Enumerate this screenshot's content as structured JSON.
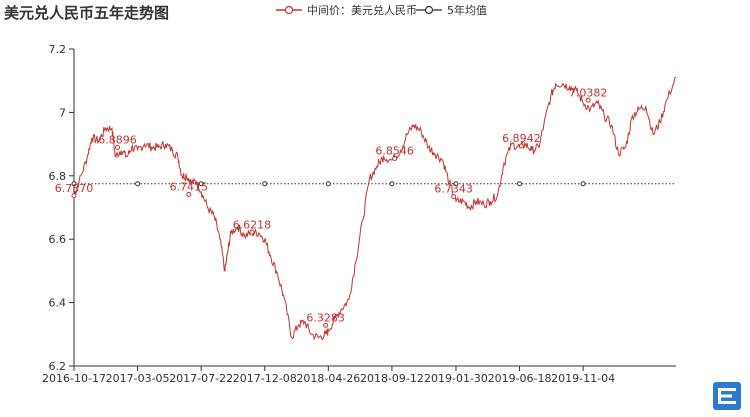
{
  "chart_data": {
    "type": "line",
    "title": "美元兑人民币五年走势图",
    "legend": [
      "中间价：美元兑人民币",
      "5年均值"
    ],
    "legend_placement": "top-center",
    "x_tick_labels": [
      "2016-10-17",
      "2017-03-05",
      "2017-07-22",
      "2017-12-08",
      "2018-04-26",
      "2018-09-12",
      "2019-01-30",
      "2019-06-18",
      "2019-11-04"
    ],
    "y_ticks": [
      6.2,
      6.4,
      6.6,
      6.8,
      7,
      7.2
    ],
    "ylim": [
      6.2,
      7.2
    ],
    "xlim": [
      "2016-10-17",
      "2020-05-25"
    ],
    "grid": false,
    "series": [
      {
        "name": "中间价：美元兑人民币",
        "color": "#c23531",
        "points": [
          [
            "2016-10-17",
            6.737
          ],
          [
            "2016-10-28",
            6.78
          ],
          [
            "2016-11-15",
            6.86
          ],
          [
            "2016-11-25",
            6.92
          ],
          [
            "2016-12-10",
            6.91
          ],
          [
            "2016-12-25",
            6.95
          ],
          [
            "2017-01-08",
            6.95
          ],
          [
            "2017-01-15",
            6.86
          ],
          [
            "2017-01-28",
            6.88
          ],
          [
            "2017-02-10",
            6.86
          ],
          [
            "2017-02-20",
            6.89
          ],
          [
            "2017-03-05",
            6.88
          ],
          [
            "2017-03-20",
            6.9
          ],
          [
            "2017-04-05",
            6.89
          ],
          [
            "2017-04-20",
            6.89
          ],
          [
            "2017-05-05",
            6.9
          ],
          [
            "2017-05-20",
            6.88
          ],
          [
            "2017-06-01",
            6.86
          ],
          [
            "2017-06-10",
            6.8
          ],
          [
            "2017-06-20",
            6.8
          ],
          [
            "2017-06-30",
            6.78
          ],
          [
            "2017-07-12",
            6.78
          ],
          [
            "2017-07-22",
            6.75
          ],
          [
            "2017-08-05",
            6.7
          ],
          [
            "2017-08-20",
            6.67
          ],
          [
            "2017-09-01",
            6.6
          ],
          [
            "2017-09-12",
            6.5
          ],
          [
            "2017-09-18",
            6.56
          ],
          [
            "2017-09-25",
            6.62
          ],
          [
            "2017-10-10",
            6.64
          ],
          [
            "2017-10-25",
            6.61
          ],
          [
            "2017-11-10",
            6.62
          ],
          [
            "2017-11-25",
            6.62
          ],
          [
            "2017-12-08",
            6.6
          ],
          [
            "2017-12-20",
            6.55
          ],
          [
            "2018-01-05",
            6.49
          ],
          [
            "2018-01-20",
            6.41
          ],
          [
            "2018-02-05",
            6.29
          ],
          [
            "2018-02-20",
            6.33
          ],
          [
            "2018-03-05",
            6.34
          ],
          [
            "2018-03-20",
            6.3
          ],
          [
            "2018-04-05",
            6.29
          ],
          [
            "2018-04-20",
            6.3
          ],
          [
            "2018-04-26",
            6.31
          ],
          [
            "2018-05-10",
            6.35
          ],
          [
            "2018-05-25",
            6.38
          ],
          [
            "2018-06-10",
            6.41
          ],
          [
            "2018-06-25",
            6.53
          ],
          [
            "2018-07-10",
            6.66
          ],
          [
            "2018-07-25",
            6.79
          ],
          [
            "2018-08-10",
            6.83
          ],
          [
            "2018-08-25",
            6.86
          ],
          [
            "2018-09-12",
            6.85
          ],
          [
            "2018-10-01",
            6.88
          ],
          [
            "2018-10-15",
            6.93
          ],
          [
            "2018-10-30",
            6.96
          ],
          [
            "2018-11-15",
            6.94
          ],
          [
            "2018-12-01",
            6.89
          ],
          [
            "2018-12-15",
            6.87
          ],
          [
            "2019-01-01",
            6.85
          ],
          [
            "2019-01-15",
            6.78
          ],
          [
            "2019-01-30",
            6.72
          ],
          [
            "2019-02-15",
            6.72
          ],
          [
            "2019-03-01",
            6.7
          ],
          [
            "2019-03-15",
            6.72
          ],
          [
            "2019-04-01",
            6.71
          ],
          [
            "2019-04-15",
            6.72
          ],
          [
            "2019-05-01",
            6.74
          ],
          [
            "2019-05-15",
            6.84
          ],
          [
            "2019-06-01",
            6.9
          ],
          [
            "2019-06-18",
            6.89
          ],
          [
            "2019-07-01",
            6.9
          ],
          [
            "2019-07-15",
            6.88
          ],
          [
            "2019-07-30",
            6.89
          ],
          [
            "2019-08-10",
            6.96
          ],
          [
            "2019-08-25",
            7.05
          ],
          [
            "2019-09-05",
            7.09
          ],
          [
            "2019-09-20",
            7.09
          ],
          [
            "2019-10-05",
            7.08
          ],
          [
            "2019-10-20",
            7.07
          ],
          [
            "2019-11-04",
            7.03
          ],
          [
            "2019-11-20",
            7.01
          ],
          [
            "2019-12-05",
            7.03
          ],
          [
            "2019-12-20",
            6.99
          ],
          [
            "2020-01-05",
            6.96
          ],
          [
            "2020-01-20",
            6.87
          ],
          [
            "2020-02-05",
            6.89
          ],
          [
            "2020-02-20",
            6.99
          ],
          [
            "2020-03-05",
            7.01
          ],
          [
            "2020-03-20",
            7.02
          ],
          [
            "2020-04-05",
            6.93
          ],
          [
            "2020-04-20",
            6.97
          ],
          [
            "2020-05-05",
            7.04
          ],
          [
            "2020-05-25",
            7.11
          ]
        ]
      },
      {
        "name": "5年均值",
        "color": "#333333",
        "value": 6.775
      }
    ],
    "data_labels": [
      {
        "text": "6.7370",
        "x": "2016-10-17",
        "y": 6.737
      },
      {
        "text": "6.8896",
        "x": "2017-01-20",
        "y": 6.8896
      },
      {
        "text": "6.7415",
        "x": "2017-06-25",
        "y": 6.7415
      },
      {
        "text": "6.6218",
        "x": "2017-11-10",
        "y": 6.6218
      },
      {
        "text": "6.3283",
        "x": "2018-04-20",
        "y": 6.3283
      },
      {
        "text": "6.8546",
        "x": "2018-09-18",
        "y": 6.8546
      },
      {
        "text": "6.7343",
        "x": "2019-01-25",
        "y": 6.7343
      },
      {
        "text": "6.8942",
        "x": "2019-06-22",
        "y": 6.8942
      },
      {
        "text": "7.0382",
        "x": "2019-11-15",
        "y": 7.0382
      }
    ]
  },
  "brand": {
    "logo_icon": "brand-e-logo-icon",
    "logo_color": "#2d7bd0"
  }
}
